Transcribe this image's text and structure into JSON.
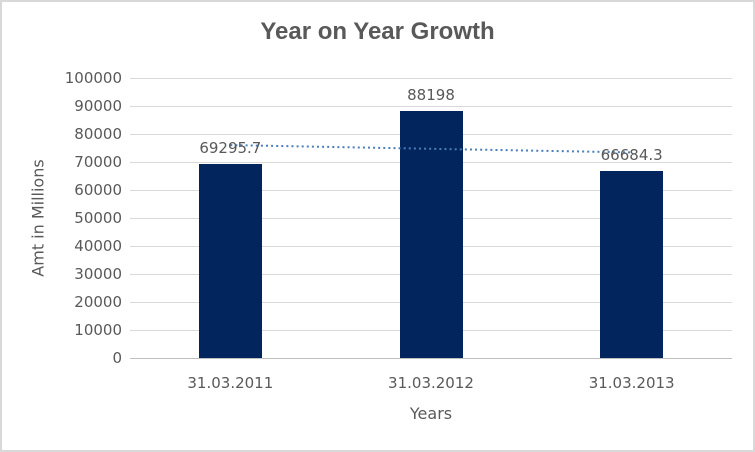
{
  "chart_data": {
    "type": "bar",
    "title": "Year on Year Growth",
    "xlabel": "Years",
    "ylabel": "Amt in Millions",
    "categories": [
      "31.03.2011",
      "31.03.2012",
      "31.03.2013"
    ],
    "values": [
      69295.7,
      88198,
      66684.3
    ],
    "data_labels": [
      "69295.7",
      "88198",
      "66684.3"
    ],
    "ylim": [
      0,
      100000
    ],
    "ytick_step": 10000,
    "yticks": [
      0,
      10000,
      20000,
      30000,
      40000,
      50000,
      60000,
      70000,
      80000,
      90000,
      100000
    ],
    "grid": true,
    "legend": "none",
    "trendline": {
      "type": "linear",
      "style": "dotted",
      "values": [
        76031.7,
        74726,
        73420.3
      ],
      "color": "#4a7ebb"
    },
    "colors": {
      "bar": "#03255d",
      "gridline": "#d9d9d9",
      "axis_line": "#bfbfbf",
      "text": "#595959",
      "background": "#ffffff",
      "border": "#d8d8d8"
    }
  }
}
